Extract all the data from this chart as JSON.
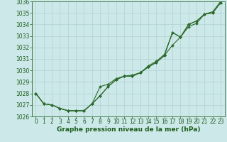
{
  "x": [
    0,
    1,
    2,
    3,
    4,
    5,
    6,
    7,
    8,
    9,
    10,
    11,
    12,
    13,
    14,
    15,
    16,
    17,
    18,
    19,
    20,
    21,
    22,
    23
  ],
  "s1": [
    1028.0,
    1027.1,
    1027.0,
    1026.7,
    1026.5,
    1026.5,
    1026.5,
    1027.1,
    1027.8,
    1028.6,
    1029.2,
    1029.5,
    1029.5,
    1029.8,
    1030.3,
    1030.7,
    1031.3,
    1032.2,
    1032.9,
    1033.8,
    1034.1,
    1034.9,
    1035.0,
    1035.9
  ],
  "s2": [
    1028.0,
    1027.1,
    1027.0,
    1026.7,
    1026.5,
    1026.5,
    1026.5,
    1027.1,
    1027.8,
    1028.6,
    1029.2,
    1029.5,
    1029.5,
    1029.8,
    1030.3,
    1030.7,
    1031.3,
    1033.3,
    1032.9,
    1034.0,
    1034.3,
    1034.9,
    1035.0,
    1035.9
  ],
  "s3": [
    1028.0,
    1027.1,
    1027.0,
    1026.7,
    1026.5,
    1026.5,
    1026.5,
    1027.1,
    1028.6,
    1028.8,
    1029.3,
    1029.5,
    1029.6,
    1029.8,
    1030.4,
    1030.8,
    1031.4,
    1033.3,
    1032.9,
    1034.0,
    1034.3,
    1034.9,
    1035.1,
    1036.0
  ],
  "ylim": [
    1026,
    1036
  ],
  "yticks": [
    1026,
    1027,
    1028,
    1029,
    1030,
    1031,
    1032,
    1033,
    1034,
    1035,
    1036
  ],
  "xlim_min": -0.5,
  "xlim_max": 23.5,
  "xticks": [
    0,
    1,
    2,
    3,
    4,
    5,
    6,
    7,
    8,
    9,
    10,
    11,
    12,
    13,
    14,
    15,
    16,
    17,
    18,
    19,
    20,
    21,
    22,
    23
  ],
  "xlabel": "Graphe pression niveau de la mer (hPa)",
  "line_color": "#2d6a2d",
  "bg_color": "#cce8e8",
  "grid_color": "#aacccc",
  "text_color": "#1a5c1a",
  "font_size_label": 6.5,
  "font_size_tick": 5.5
}
